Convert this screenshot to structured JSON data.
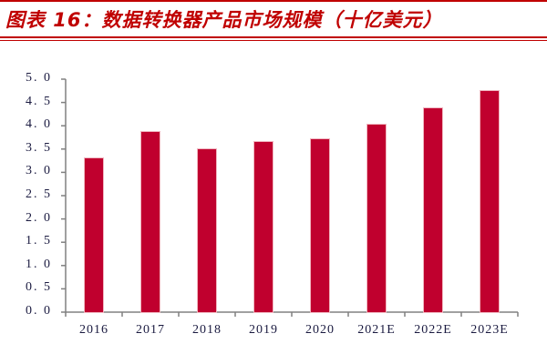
{
  "title": "图表 16：数据转换器产品市场规模（十亿美元）",
  "colors": {
    "bar": "#c0002e",
    "title": "#c00000",
    "axis": "#808080",
    "tick_text": "#1a1a40"
  },
  "chart_data": {
    "type": "bar",
    "title": "图表 16：数据转换器产品市场规模（十亿美元）",
    "xlabel": "",
    "ylabel": "",
    "categories": [
      "2016",
      "2017",
      "2018",
      "2019",
      "2020",
      "2021E",
      "2022E",
      "2023E"
    ],
    "values": [
      3.3,
      3.87,
      3.5,
      3.65,
      3.71,
      4.02,
      4.37,
      4.75
    ],
    "ylim": [
      0,
      5
    ],
    "yticks": [
      "0. 0",
      "0. 5",
      "1. 0",
      "1. 5",
      "2. 0",
      "2. 5",
      "3. 0",
      "3. 5",
      "4. 0",
      "4. 5",
      "5. 0"
    ],
    "grid": false,
    "legend": null
  }
}
